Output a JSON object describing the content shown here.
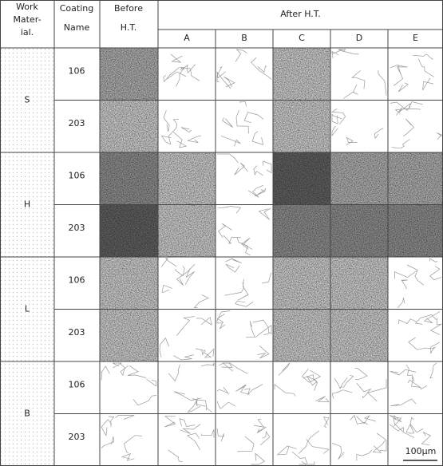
{
  "header": {
    "work_material": [
      "Work",
      "Mater-",
      "ial."
    ],
    "coating_name": [
      "Coating",
      "Name"
    ],
    "before": [
      "Before",
      "H.T."
    ],
    "after": "After H.T.",
    "conditions": [
      "A",
      "B",
      "C",
      "D",
      "E"
    ]
  },
  "rows": [
    {
      "material": "S",
      "coatings": [
        "106",
        "203"
      ]
    },
    {
      "material": "H",
      "coatings": [
        "106",
        "203"
      ]
    },
    {
      "material": "L",
      "coatings": [
        "106",
        "203"
      ]
    },
    {
      "material": "B",
      "coatings": [
        "106",
        "203"
      ]
    }
  ],
  "scale_bar": "100µm"
}
